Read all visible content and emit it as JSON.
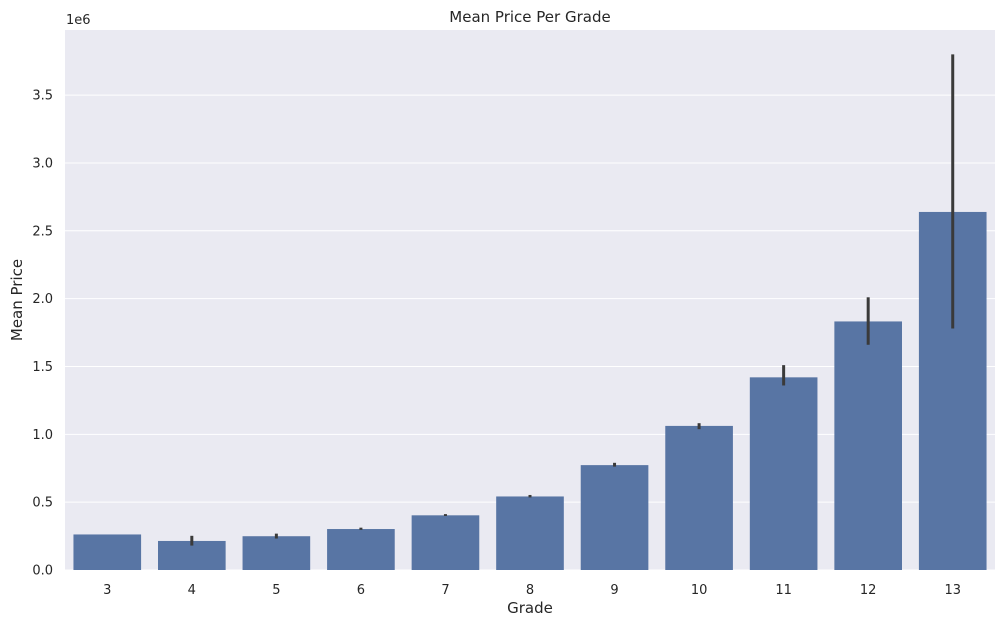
{
  "chart_data": {
    "type": "bar",
    "title": "Mean Price Per Grade",
    "xlabel": "Grade",
    "ylabel": "Mean Price",
    "y_offset_label": "1e6",
    "y_multiplier": 1000000,
    "categories": [
      "3",
      "4",
      "5",
      "6",
      "7",
      "8",
      "9",
      "10",
      "11",
      "12",
      "13"
    ],
    "values": [
      262000,
      214000,
      249000,
      302000,
      403000,
      542000,
      773000,
      1062000,
      1420000,
      1832000,
      2639000
    ],
    "error_low": [
      262000,
      180000,
      232000,
      296000,
      398000,
      535000,
      762000,
      1038000,
      1360000,
      1660000,
      1780000
    ],
    "error_high": [
      262000,
      252000,
      268000,
      312000,
      412000,
      553000,
      790000,
      1082000,
      1510000,
      2010000,
      3800000
    ],
    "ylim": [
      0,
      3980000
    ],
    "yticks": [
      0,
      500000,
      1000000,
      1500000,
      2000000,
      2500000,
      3000000,
      3500000
    ],
    "ytick_labels": [
      "0.0",
      "0.5",
      "1.0",
      "1.5",
      "2.0",
      "2.5",
      "3.0",
      "3.5"
    ],
    "grid": true,
    "colors": {
      "bar": "#5875a4",
      "error_bar": "#3a3a3a",
      "plot_background": "#eaeaf2",
      "grid": "#ffffff",
      "text": "#262626"
    }
  }
}
